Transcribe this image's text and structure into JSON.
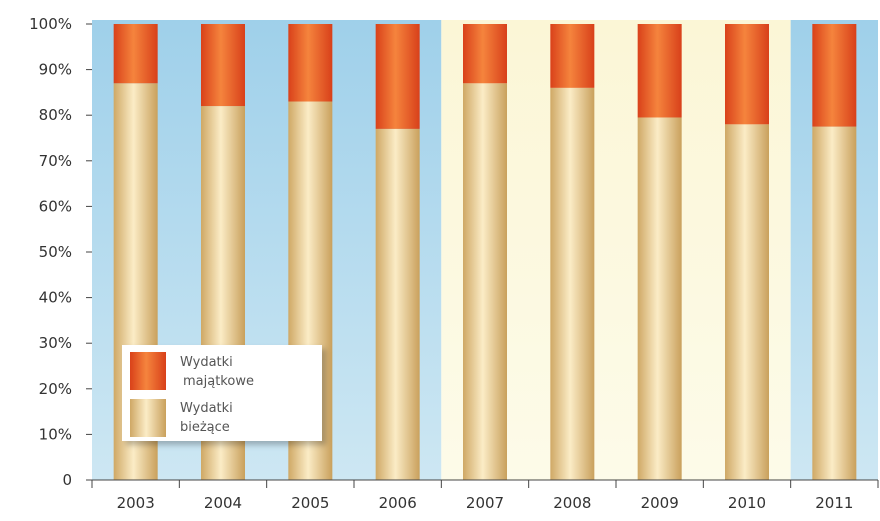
{
  "chart_data": {
    "type": "bar",
    "stacked": true,
    "stack_mode": "percent",
    "categories": [
      "2003",
      "2004",
      "2005",
      "2006",
      "2007",
      "2008",
      "2009",
      "2010",
      "2011"
    ],
    "series": [
      {
        "name": "Wydatki bieżące",
        "name_lines": [
          "Wydatki",
          "bieżące"
        ],
        "values": [
          87,
          82,
          83,
          77,
          87,
          86,
          79.5,
          78,
          77.5
        ],
        "color": "#e8c98f"
      },
      {
        "name": "Wydatki majątkowe",
        "name_lines": [
          "Wydatki",
          "majątkowe"
        ],
        "values": [
          13,
          18,
          17,
          23,
          13,
          14,
          20.5,
          22,
          22.5
        ],
        "color": "#e85a1e"
      }
    ],
    "ylim": [
      0,
      100
    ],
    "yticks": [
      "0",
      "10%",
      "20%",
      "30%",
      "40%",
      "50%",
      "60%",
      "70%",
      "80%",
      "90%",
      "100%"
    ],
    "grid": false,
    "legend_position": "lower-left",
    "background_bands": [
      {
        "from": "2003",
        "to": "2006",
        "color": "#a9d6ee"
      },
      {
        "from": "2007",
        "to": "2010",
        "color": "#fbf7d8"
      },
      {
        "from": "2011",
        "to": "2011",
        "color": "#a9d6ee"
      }
    ]
  }
}
